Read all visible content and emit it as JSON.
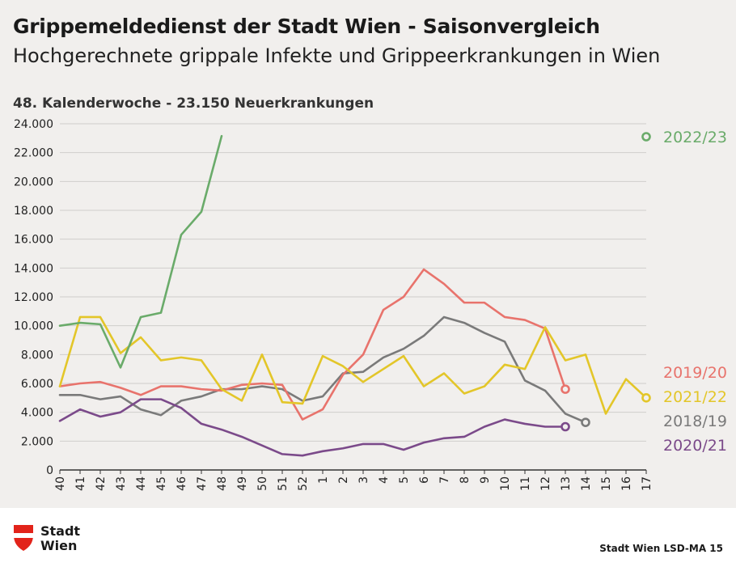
{
  "header": {
    "title": "Grippemeldedienst der Stadt Wien - Saisonvergleich",
    "subtitle": "Hochgerechnete grippale Infekte und Grippeerkrankungen in Wien",
    "caption": "48. Kalenderwoche - 23.150 Neuerkrankungen"
  },
  "footer": {
    "logo_line1": "Stadt",
    "logo_line2": "Wien",
    "source": "Stadt Wien LSD-MA 15"
  },
  "colors": {
    "background": "#f1efed",
    "grid": "#d0cecc",
    "axis": "#333333",
    "logo_red": "#e2231a"
  },
  "chart_data": {
    "type": "line",
    "x_categories": [
      "40",
      "41",
      "42",
      "43",
      "44",
      "45",
      "46",
      "47",
      "48",
      "49",
      "50",
      "51",
      "52",
      "1",
      "2",
      "3",
      "4",
      "5",
      "6",
      "7",
      "8",
      "9",
      "10",
      "11",
      "12",
      "13",
      "14",
      "15",
      "16",
      "17"
    ],
    "y_ticks": [
      "0",
      "2.000",
      "4.000",
      "6.000",
      "8.000",
      "10.000",
      "12.000",
      "14.000",
      "16.000",
      "18.000",
      "20.000",
      "22.000",
      "24.000"
    ],
    "ylim": [
      0,
      24000
    ],
    "grid": "horizontal",
    "legend": "right, labels at line ends",
    "series": [
      {
        "name": "2018/19",
        "color": "#7a7a7a",
        "values": [
          5200,
          5200,
          4900,
          5100,
          4200,
          3800,
          4800,
          5100,
          5600,
          5600,
          5800,
          5600,
          4800,
          5100,
          6700,
          6800,
          7800,
          8400,
          9300,
          10600,
          10200,
          9500,
          8900,
          6200,
          5500,
          3900,
          3300
        ]
      },
      {
        "name": "2019/20",
        "color": "#e8736c",
        "values": [
          5800,
          6000,
          6100,
          5700,
          5200,
          5800,
          5800,
          5600,
          5500,
          5900,
          6000,
          5900,
          3500,
          4200,
          6600,
          8000,
          11100,
          12000,
          13900,
          12900,
          11600,
          11600,
          10600,
          10400,
          9800,
          5600
        ]
      },
      {
        "name": "2020/21",
        "color": "#7b4a8a",
        "values": [
          3400,
          4200,
          3700,
          4000,
          4900,
          4900,
          4300,
          3200,
          2800,
          2300,
          1700,
          1100,
          1000,
          1300,
          1500,
          1800,
          1800,
          1400,
          1900,
          2200,
          2300,
          3000,
          3500,
          3200,
          3000,
          3000
        ]
      },
      {
        "name": "2021/22",
        "color": "#e3c629",
        "values": [
          5800,
          10600,
          10600,
          8100,
          9200,
          7600,
          7800,
          7600,
          5600,
          4800,
          8000,
          4700,
          4600,
          7900,
          7200,
          6100,
          7000,
          7900,
          5800,
          6700,
          5300,
          5800,
          7300,
          7000,
          9900,
          7600,
          8000,
          3900,
          6300,
          5000
        ]
      },
      {
        "name": "2022/23",
        "color": "#6aab6a",
        "values": [
          10000,
          10200,
          10100,
          7100,
          10600,
          10900,
          16300,
          17900,
          23150
        ]
      }
    ]
  }
}
